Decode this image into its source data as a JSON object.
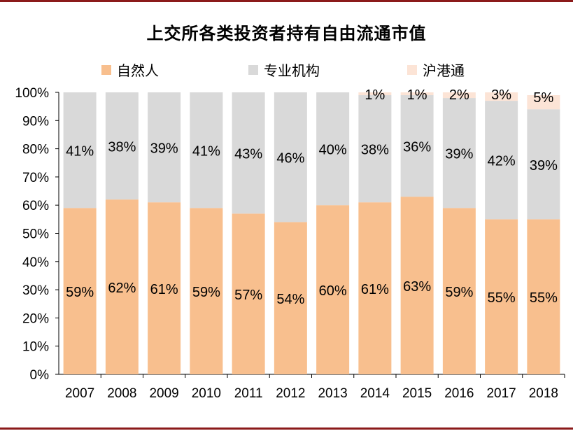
{
  "chart_data": {
    "type": "bar",
    "stacked": true,
    "percent_stacked": true,
    "title": "上交所各类投资者持有自由流通市值",
    "categories": [
      "2007",
      "2008",
      "2009",
      "2010",
      "2011",
      "2012",
      "2013",
      "2014",
      "2015",
      "2016",
      "2017",
      "2018"
    ],
    "series": [
      {
        "name": "自然人",
        "color": "#f8bf8e",
        "values": [
          59,
          62,
          61,
          59,
          57,
          54,
          60,
          61,
          63,
          59,
          55,
          55
        ],
        "labels": [
          "59%",
          "62%",
          "61%",
          "59%",
          "57%",
          "54%",
          "60%",
          "61%",
          "63%",
          "59%",
          "55%",
          "55%"
        ]
      },
      {
        "name": "专业机构",
        "color": "#d9d9d9",
        "values": [
          41,
          38,
          39,
          41,
          43,
          46,
          40,
          38,
          36,
          39,
          42,
          39
        ],
        "labels": [
          "41%",
          "38%",
          "39%",
          "41%",
          "43%",
          "46%",
          "40%",
          "38%",
          "36%",
          "39%",
          "42%",
          "39%"
        ]
      },
      {
        "name": "沪港通",
        "color": "#fce4d6",
        "values": [
          0,
          0,
          0,
          0,
          0,
          0,
          0,
          1,
          1,
          2,
          3,
          5
        ],
        "labels": [
          "",
          "",
          "",
          "",
          "",
          "",
          "",
          "1%",
          "1%",
          "2%",
          "3%",
          "5%"
        ]
      }
    ],
    "yticks": [
      "0%",
      "10%",
      "20%",
      "30%",
      "40%",
      "50%",
      "60%",
      "70%",
      "80%",
      "90%",
      "100%"
    ],
    "ylim": [
      0,
      100
    ],
    "legend_position": "top"
  }
}
